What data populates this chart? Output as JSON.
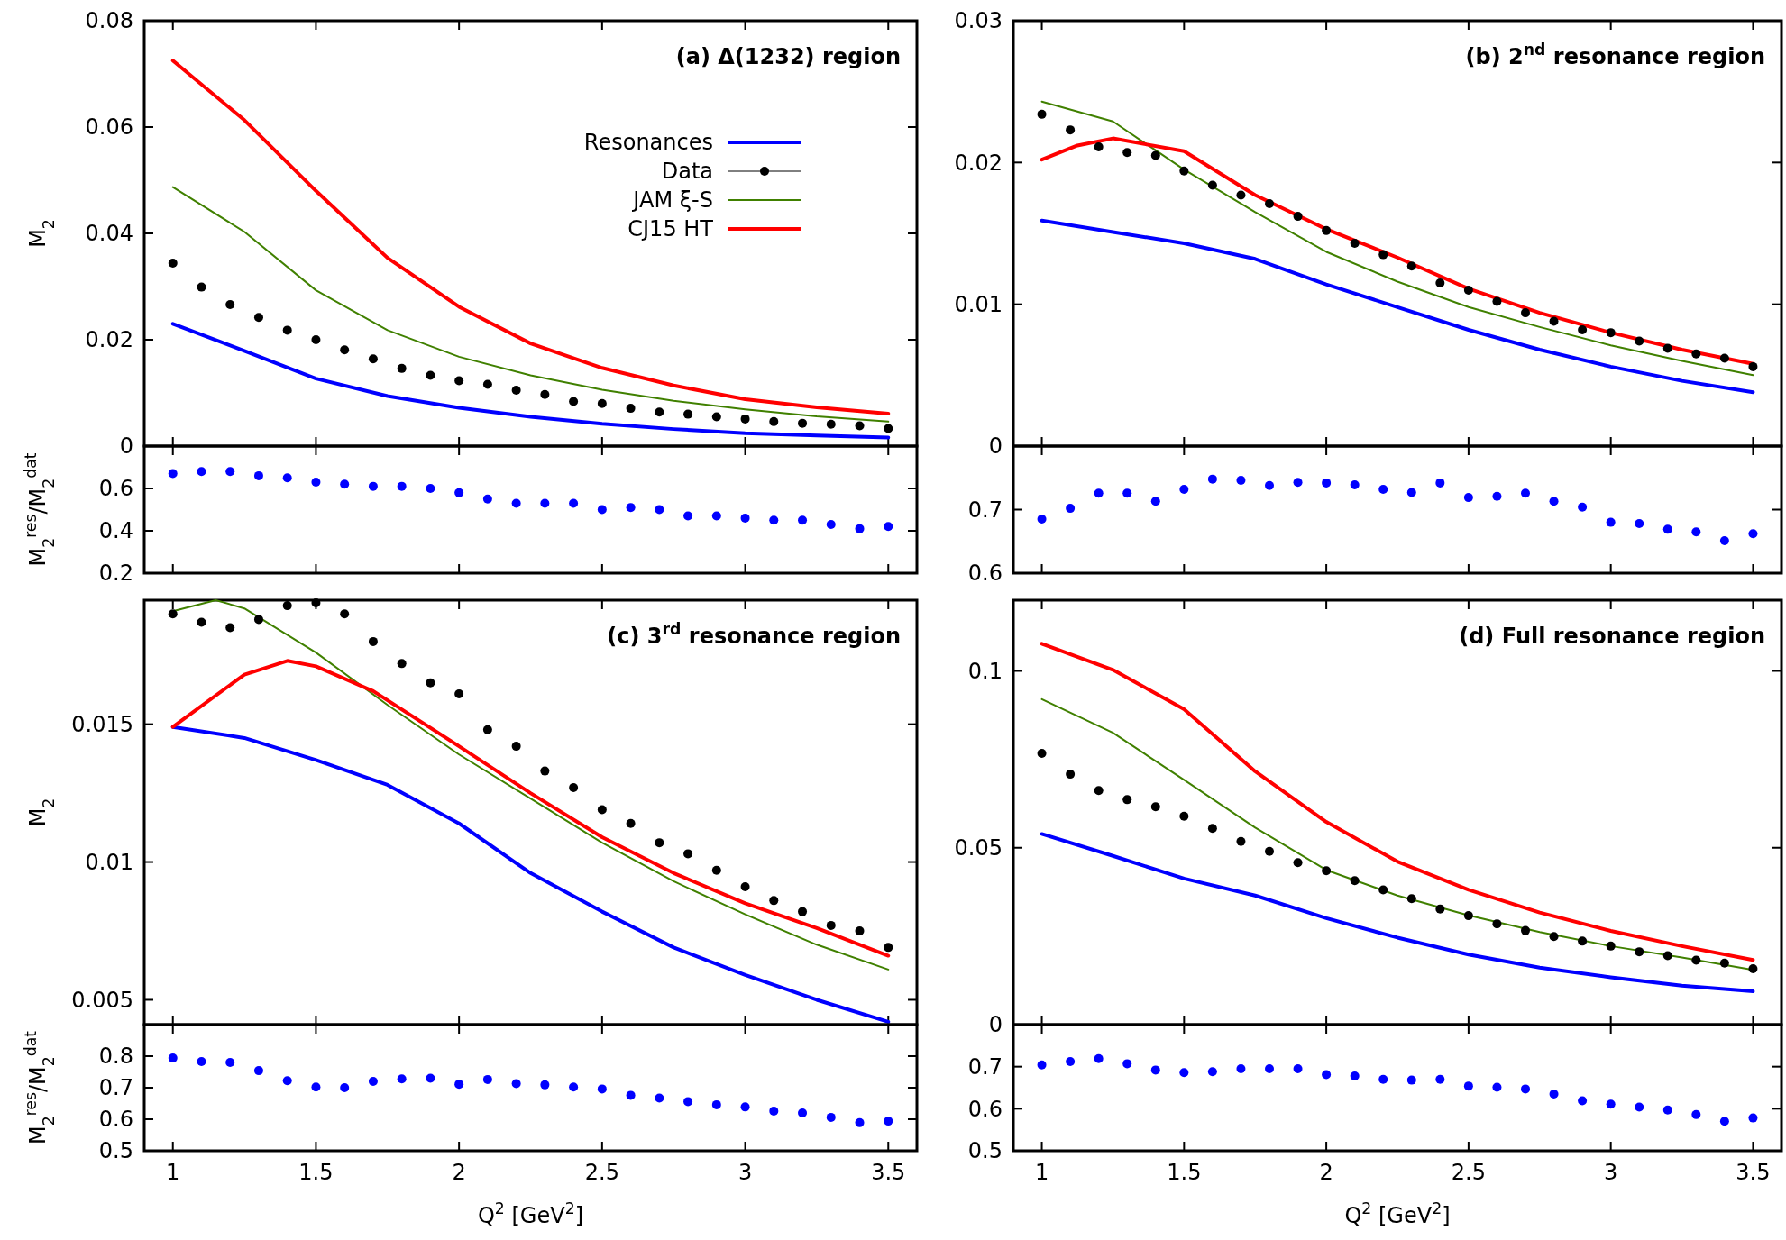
{
  "chart_data": [
    {
      "type": "line",
      "title": "(a) Δ(1232) region",
      "ylabel": "M$_{2}$",
      "xlim": [
        0.9,
        3.6
      ],
      "xticks": [
        1,
        1.5,
        2,
        2.5,
        3,
        3.5
      ],
      "ylim": [
        0,
        0.08
      ],
      "yticks": [
        0,
        0.02,
        0.04,
        0.06,
        0.08
      ],
      "tick_labels": "y",
      "legend": "top right",
      "series": [
        {
          "name": "Resonances",
          "color": "#0000ff",
          "x": [
            1,
            1.25,
            1.5,
            1.75,
            2,
            2.25,
            2.5,
            2.75,
            3,
            3.25,
            3.5
          ],
          "values": [
            0.023,
            0.0179,
            0.0127,
            0.0094,
            0.0072,
            0.0055,
            0.0042,
            0.0032,
            0.0024,
            0.002,
            0.0016
          ]
        },
        {
          "name": "Data",
          "type": "scatter",
          "marker": "circle",
          "color": "#000000",
          "x": [
            1,
            1.1,
            1.2,
            1.3,
            1.4,
            1.5,
            1.6,
            1.7,
            1.8,
            1.9,
            2,
            2.1,
            2.2,
            2.3,
            2.4,
            2.5,
            2.6,
            2.7,
            2.8,
            2.9,
            3,
            3.1,
            3.2,
            3.3,
            3.4,
            3.5
          ],
          "values": [
            0.0344,
            0.0299,
            0.0266,
            0.0242,
            0.0218,
            0.02,
            0.0181,
            0.0164,
            0.0146,
            0.0133,
            0.0123,
            0.0116,
            0.0105,
            0.0097,
            0.0084,
            0.008,
            0.0071,
            0.0064,
            0.006,
            0.0055,
            0.0051,
            0.0046,
            0.0043,
            0.0041,
            0.0038,
            0.0033
          ]
        },
        {
          "name": "JAM ξ-S",
          "color": "#408000",
          "x": [
            1,
            1.25,
            1.5,
            1.75,
            2,
            2.25,
            2.5,
            2.75,
            3,
            3.25,
            3.5
          ],
          "values": [
            0.0487,
            0.0403,
            0.0293,
            0.0218,
            0.0168,
            0.0133,
            0.0106,
            0.0085,
            0.0069,
            0.0056,
            0.0046
          ]
        },
        {
          "name": "CJ15 HT",
          "color": "#ff0000",
          "x": [
            1,
            1.25,
            1.5,
            1.75,
            2,
            2.25,
            2.5,
            2.75,
            3,
            3.25,
            3.5
          ],
          "values": [
            0.0725,
            0.0613,
            0.048,
            0.0354,
            0.0262,
            0.0193,
            0.0147,
            0.0114,
            0.0088,
            0.0073,
            0.0061
          ]
        }
      ]
    },
    {
      "type": "line",
      "title": "(b) 2$^{nd}$ resonance region",
      "xlim": [
        0.9,
        3.6
      ],
      "xticks": [
        1,
        1.5,
        2,
        2.5,
        3,
        3.5
      ],
      "ylim": [
        0,
        0.03
      ],
      "yticks": [
        0,
        0.01,
        0.02,
        0.03
      ],
      "tick_labels": "y",
      "series": [
        {
          "color": "#0000ff",
          "x": [
            1,
            1.25,
            1.5,
            1.75,
            2,
            2.25,
            2.5,
            2.75,
            3,
            3.25,
            3.5
          ],
          "values": [
            0.0159,
            0.0151,
            0.0143,
            0.0132,
            0.0114,
            0.0098,
            0.0082,
            0.0068,
            0.0056,
            0.0046,
            0.0038
          ]
        },
        {
          "type": "scatter",
          "marker": "circle",
          "color": "#000000",
          "x": [
            1,
            1.1,
            1.2,
            1.3,
            1.4,
            1.5,
            1.6,
            1.7,
            1.8,
            1.9,
            2,
            2.1,
            2.2,
            2.3,
            2.4,
            2.5,
            2.6,
            2.7,
            2.8,
            2.9,
            3,
            3.1,
            3.2,
            3.3,
            3.4,
            3.5
          ],
          "values": [
            0.0234,
            0.0223,
            0.0211,
            0.0207,
            0.0205,
            0.0194,
            0.0184,
            0.0177,
            0.0171,
            0.0162,
            0.0152,
            0.0143,
            0.0135,
            0.0127,
            0.0115,
            0.011,
            0.0102,
            0.0094,
            0.0088,
            0.0082,
            0.008,
            0.0074,
            0.0069,
            0.0065,
            0.0062,
            0.0056
          ]
        },
        {
          "color": "#408000",
          "x": [
            1,
            1.25,
            1.5,
            1.75,
            2,
            2.25,
            2.5,
            2.75,
            3,
            3.25,
            3.5
          ],
          "values": [
            0.0243,
            0.0229,
            0.0195,
            0.0165,
            0.0137,
            0.0116,
            0.0098,
            0.0084,
            0.0071,
            0.006,
            0.005
          ]
        },
        {
          "color": "#ff0000",
          "x": [
            1,
            1.125,
            1.25,
            1.5,
            1.75,
            2,
            2.25,
            2.5,
            2.75,
            3,
            3.25,
            3.5
          ],
          "values": [
            0.0202,
            0.0212,
            0.0217,
            0.0208,
            0.0177,
            0.0153,
            0.0133,
            0.0111,
            0.0094,
            0.008,
            0.0068,
            0.0058
          ]
        }
      ]
    },
    {
      "type": "scatter",
      "marker": "circle",
      "ylabel": "M$_{2}$$^{res}$/M$_{2}$$^{dat}$",
      "xlim": [
        0.9,
        3.6
      ],
      "xticks": [
        1,
        1.5,
        2,
        2.5,
        3,
        3.5
      ],
      "ylim": [
        0.2,
        0.8
      ],
      "yticks": [
        0.2,
        0.4,
        0.6
      ],
      "tick_labels": "y",
      "color": "#0000ff",
      "x": [
        1,
        1.1,
        1.2,
        1.3,
        1.4,
        1.5,
        1.6,
        1.7,
        1.8,
        1.9,
        2,
        2.1,
        2.2,
        2.3,
        2.4,
        2.5,
        2.6,
        2.7,
        2.8,
        2.9,
        3,
        3.1,
        3.2,
        3.3,
        3.4,
        3.5
      ],
      "values": [
        0.67,
        0.68,
        0.68,
        0.66,
        0.65,
        0.63,
        0.62,
        0.61,
        0.61,
        0.6,
        0.58,
        0.55,
        0.53,
        0.53,
        0.53,
        0.5,
        0.51,
        0.5,
        0.47,
        0.47,
        0.46,
        0.45,
        0.45,
        0.43,
        0.41,
        0.42
      ]
    },
    {
      "type": "scatter",
      "marker": "circle",
      "xlim": [
        0.9,
        3.6
      ],
      "xticks": [
        1,
        1.5,
        2,
        2.5,
        3,
        3.5
      ],
      "ylim": [
        0.6,
        0.8
      ],
      "yticks": [
        0.6,
        0.7
      ],
      "tick_labels": "y",
      "color": "#0000ff",
      "x": [
        1,
        1.1,
        1.2,
        1.3,
        1.4,
        1.5,
        1.6,
        1.7,
        1.8,
        1.9,
        2,
        2.1,
        2.2,
        2.3,
        2.4,
        2.5,
        2.6,
        2.7,
        2.8,
        2.9,
        3,
        3.1,
        3.2,
        3.3,
        3.4,
        3.5
      ],
      "values": [
        0.685,
        0.702,
        0.726,
        0.726,
        0.713,
        0.732,
        0.748,
        0.746,
        0.738,
        0.743,
        0.742,
        0.739,
        0.732,
        0.727,
        0.742,
        0.719,
        0.721,
        0.726,
        0.713,
        0.704,
        0.68,
        0.678,
        0.669,
        0.665,
        0.651,
        0.662
      ]
    },
    {
      "type": "line",
      "title": "(c) 3$^{rd}$ resonance region",
      "ylabel": "M$_{2}$",
      "xlim": [
        0.9,
        3.6
      ],
      "xticks": [
        1,
        1.5,
        2,
        2.5,
        3,
        3.5
      ],
      "ylim": [
        0.0041,
        0.0195
      ],
      "yticks": [
        0.005,
        0.01,
        0.015
      ],
      "tick_labels": "y",
      "series": [
        {
          "color": "#0000ff",
          "x": [
            1,
            1.25,
            1.5,
            1.75,
            2,
            2.25,
            2.5,
            2.75,
            3,
            3.25,
            3.5
          ],
          "values": [
            0.0149,
            0.0145,
            0.0137,
            0.0128,
            0.0114,
            0.0096,
            0.0082,
            0.0069,
            0.0059,
            0.005,
            0.0042
          ]
        },
        {
          "type": "scatter",
          "marker": "circle",
          "color": "#000000",
          "x": [
            1,
            1.1,
            1.2,
            1.3,
            1.4,
            1.5,
            1.6,
            1.7,
            1.8,
            1.9,
            2,
            2.1,
            2.2,
            2.3,
            2.4,
            2.5,
            2.6,
            2.7,
            2.8,
            2.9,
            3,
            3.1,
            3.2,
            3.3,
            3.4,
            3.5
          ],
          "values": [
            0.019,
            0.0187,
            0.0185,
            0.0188,
            0.0193,
            0.0194,
            0.019,
            0.018,
            0.0172,
            0.0165,
            0.0161,
            0.0148,
            0.0142,
            0.0133,
            0.0127,
            0.0119,
            0.0114,
            0.0107,
            0.0103,
            0.0097,
            0.0091,
            0.0086,
            0.0082,
            0.0077,
            0.0075,
            0.0069
          ]
        },
        {
          "color": "#408000",
          "x": [
            1,
            1.15,
            1.25,
            1.5,
            1.75,
            2,
            2.25,
            2.5,
            2.75,
            3,
            3.25,
            3.5
          ],
          "values": [
            0.0191,
            0.0195,
            0.0192,
            0.0176,
            0.0157,
            0.0139,
            0.0123,
            0.0107,
            0.0093,
            0.0081,
            0.007,
            0.0061
          ]
        },
        {
          "color": "#ff0000",
          "x": [
            1,
            1.25,
            1.4,
            1.5,
            1.7,
            2,
            2.25,
            2.5,
            2.75,
            3,
            3.25,
            3.5
          ],
          "values": [
            0.0149,
            0.0168,
            0.0173,
            0.0171,
            0.0162,
            0.0142,
            0.0125,
            0.0109,
            0.0096,
            0.0085,
            0.0076,
            0.0066
          ]
        }
      ]
    },
    {
      "type": "line",
      "title": "(d) Full resonance region",
      "xlim": [
        0.9,
        3.6
      ],
      "xticks": [
        1,
        1.5,
        2,
        2.5,
        3,
        3.5
      ],
      "ylim": [
        0,
        0.12
      ],
      "yticks": [
        0,
        0.05,
        0.1
      ],
      "tick_labels": "y",
      "series": [
        {
          "color": "#0000ff",
          "x": [
            1,
            1.25,
            1.5,
            1.75,
            2,
            2.25,
            2.5,
            2.75,
            3,
            3.25,
            3.5
          ],
          "values": [
            0.0539,
            0.0477,
            0.0413,
            0.0365,
            0.0301,
            0.0246,
            0.0198,
            0.0161,
            0.0134,
            0.011,
            0.0094
          ]
        },
        {
          "type": "scatter",
          "marker": "circle",
          "color": "#000000",
          "x": [
            1,
            1.1,
            1.2,
            1.3,
            1.4,
            1.5,
            1.6,
            1.7,
            1.8,
            1.9,
            2,
            2.1,
            2.2,
            2.3,
            2.4,
            2.5,
            2.6,
            2.7,
            2.8,
            2.9,
            3,
            3.1,
            3.2,
            3.3,
            3.4,
            3.5
          ],
          "values": [
            0.0767,
            0.0708,
            0.0662,
            0.0636,
            0.0616,
            0.0589,
            0.0555,
            0.0518,
            0.049,
            0.0458,
            0.0435,
            0.0407,
            0.0381,
            0.0356,
            0.0327,
            0.0308,
            0.0285,
            0.0266,
            0.0249,
            0.0236,
            0.0222,
            0.0206,
            0.0195,
            0.0182,
            0.0174,
            0.0158
          ]
        },
        {
          "color": "#408000",
          "x": [
            1,
            1.25,
            1.5,
            1.75,
            2,
            2.25,
            2.5,
            2.75,
            3,
            3.25,
            3.5
          ],
          "values": [
            0.092,
            0.0825,
            0.0692,
            0.0557,
            0.0437,
            0.0365,
            0.0309,
            0.0262,
            0.0222,
            0.019,
            0.0155
          ]
        },
        {
          "color": "#ff0000",
          "x": [
            1,
            1.25,
            1.5,
            1.75,
            2,
            2.25,
            2.5,
            2.75,
            3,
            3.25,
            3.5
          ],
          "values": [
            0.1077,
            0.1003,
            0.0892,
            0.0716,
            0.0573,
            0.0461,
            0.0381,
            0.0317,
            0.0265,
            0.0222,
            0.0183
          ]
        }
      ]
    },
    {
      "type": "scatter",
      "marker": "circle",
      "ylabel": "M$_{2}$$^{res}$/M$_{2}$$^{dat}$",
      "xlabel": "Q$^{2}$ [GeV$^{2}$]",
      "xlim": [
        0.9,
        3.6
      ],
      "xticks": [
        1,
        1.5,
        2,
        2.5,
        3,
        3.5
      ],
      "ylim": [
        0.5,
        0.9
      ],
      "yticks": [
        0.5,
        0.6,
        0.7,
        0.8
      ],
      "color": "#0000ff",
      "x": [
        1,
        1.1,
        1.2,
        1.3,
        1.4,
        1.5,
        1.6,
        1.7,
        1.8,
        1.9,
        2,
        2.1,
        2.2,
        2.3,
        2.4,
        2.5,
        2.6,
        2.7,
        2.8,
        2.9,
        3,
        3.1,
        3.2,
        3.3,
        3.4,
        3.5
      ],
      "values": [
        0.794,
        0.783,
        0.78,
        0.754,
        0.722,
        0.702,
        0.7,
        0.72,
        0.728,
        0.73,
        0.711,
        0.726,
        0.713,
        0.709,
        0.702,
        0.696,
        0.676,
        0.667,
        0.656,
        0.646,
        0.639,
        0.626,
        0.62,
        0.606,
        0.589,
        0.594
      ]
    },
    {
      "type": "scatter",
      "marker": "circle",
      "xlabel": "Q$^{2}$ [GeV$^{2}$]",
      "xlim": [
        0.9,
        3.6
      ],
      "xticks": [
        1,
        1.5,
        2,
        2.5,
        3,
        3.5
      ],
      "ylim": [
        0.5,
        0.8
      ],
      "yticks": [
        0.5,
        0.6,
        0.7
      ],
      "color": "#0000ff",
      "x": [
        1,
        1.1,
        1.2,
        1.3,
        1.4,
        1.5,
        1.6,
        1.7,
        1.8,
        1.9,
        2,
        2.1,
        2.2,
        2.3,
        2.4,
        2.5,
        2.6,
        2.7,
        2.8,
        2.9,
        3,
        3.1,
        3.2,
        3.3,
        3.4,
        3.5
      ],
      "values": [
        0.704,
        0.712,
        0.719,
        0.707,
        0.692,
        0.686,
        0.688,
        0.695,
        0.695,
        0.695,
        0.681,
        0.678,
        0.67,
        0.668,
        0.67,
        0.654,
        0.651,
        0.647,
        0.635,
        0.619,
        0.611,
        0.604,
        0.597,
        0.586,
        0.57,
        0.578
      ]
    }
  ]
}
